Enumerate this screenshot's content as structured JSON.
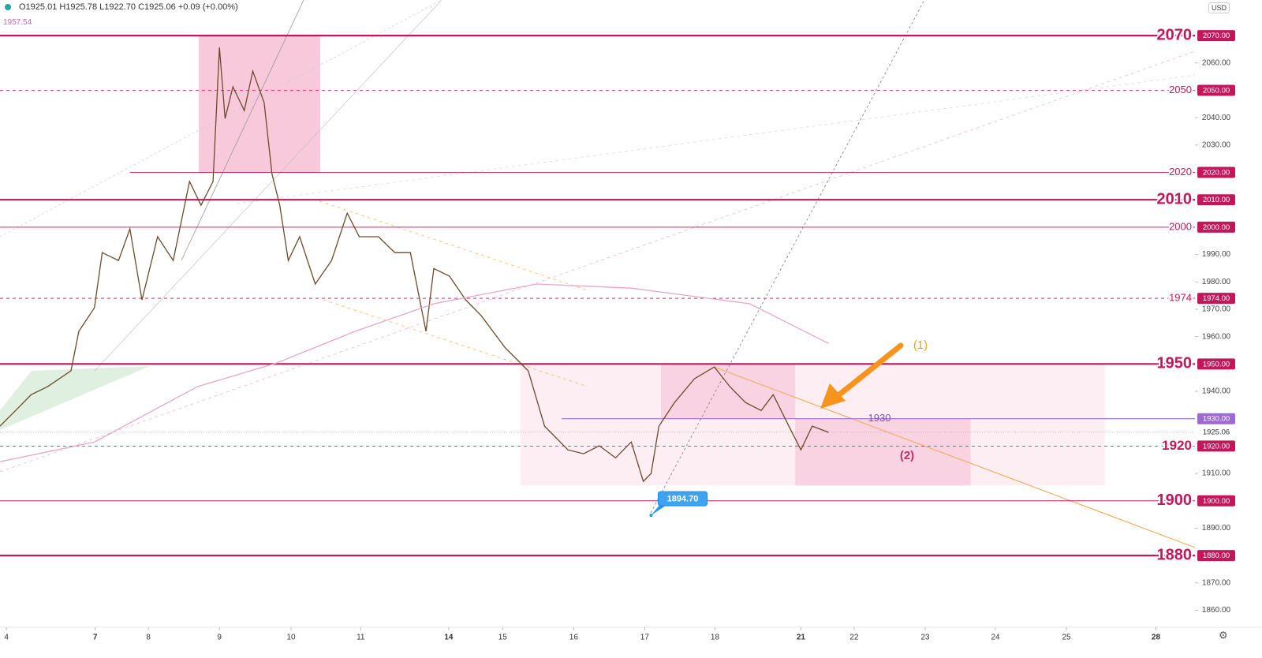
{
  "header": {
    "ohlc": "O1925.01 H1925.78 L1922.70 C1925.06 +0.09 (+0.00%)",
    "indicator_value": "1957.54",
    "currency": "USD"
  },
  "chart_data": {
    "type": "line",
    "xlim": [
      0,
      16.83
    ],
    "ylim": [
      1853.8,
      2083
    ],
    "xticks": [
      {
        "value": 0.09,
        "label": "4"
      },
      {
        "value": 1.34,
        "label": "7"
      },
      {
        "value": 2.09,
        "label": "8"
      },
      {
        "value": 3.09,
        "label": "9"
      },
      {
        "value": 4.1,
        "label": "10"
      },
      {
        "value": 5.08,
        "label": "11"
      },
      {
        "value": 6.32,
        "label": "14"
      },
      {
        "value": 7.08,
        "label": "15"
      },
      {
        "value": 8.08,
        "label": "16"
      },
      {
        "value": 9.08,
        "label": "17"
      },
      {
        "value": 10.07,
        "label": "18"
      },
      {
        "value": 11.28,
        "label": "21"
      },
      {
        "value": 12.03,
        "label": "22"
      },
      {
        "value": 13.03,
        "label": "23"
      },
      {
        "value": 14.02,
        "label": "24"
      },
      {
        "value": 15.02,
        "label": "25"
      },
      {
        "value": 16.28,
        "label": "28"
      }
    ],
    "yticks": [
      {
        "value": 2060,
        "label": "2060.00"
      },
      {
        "value": 2040,
        "label": "2040.00"
      },
      {
        "value": 2030,
        "label": "2030.00"
      },
      {
        "value": 1990,
        "label": "1990.00"
      },
      {
        "value": 1980,
        "label": "1980.00"
      },
      {
        "value": 1970,
        "label": "1970.00"
      },
      {
        "value": 1960,
        "label": "1960.00"
      },
      {
        "value": 1940,
        "label": "1940.00"
      },
      {
        "value": 1910,
        "label": "1910.00"
      },
      {
        "value": 1890,
        "label": "1890.00"
      },
      {
        "value": 1870,
        "label": "1870.00"
      },
      {
        "value": 1860,
        "label": "1860.00"
      }
    ],
    "current_price": {
      "value": 1925.06,
      "label": "1925.06"
    },
    "series": [
      {
        "color": "#6b4a2a",
        "x": [
          0,
          0.22,
          0.44,
          0.67,
          1.0,
          1.11,
          1.33,
          1.44,
          1.67,
          1.83,
          2.0,
          2.22,
          2.44,
          2.67,
          2.83,
          3.0,
          3.09,
          3.17,
          3.28,
          3.44,
          3.56,
          3.72,
          3.83,
          3.94,
          4.06,
          4.22,
          4.44,
          4.67,
          4.89,
          5.06,
          5.33,
          5.56,
          5.78,
          6.0,
          6.11,
          6.33,
          6.56,
          6.78,
          7.11,
          7.44,
          7.67,
          8.0,
          8.22,
          8.44,
          8.67,
          8.89,
          9.06,
          9.17,
          9.28,
          9.5,
          9.78,
          10.06,
          10.28,
          10.5,
          10.72,
          10.89,
          11.11,
          11.28,
          11.44,
          11.67
        ],
        "values": [
          1927.3,
          1933.0,
          1938.8,
          1941.7,
          1947.5,
          1961.9,
          1970.5,
          1990.7,
          1987.8,
          1999.4,
          1973.4,
          1996.5,
          1987.8,
          2016.7,
          2008.0,
          2016.7,
          2065.7,
          2039.7,
          2051.3,
          2042.6,
          2057.0,
          2045.5,
          2019.5,
          2008.0,
          1987.8,
          1996.5,
          1979.2,
          1987.8,
          2005.1,
          1996.5,
          1996.5,
          1990.7,
          1990.7,
          1961.9,
          1984.9,
          1982.1,
          1973.4,
          1967.6,
          1956.1,
          1947.5,
          1927.3,
          1918.6,
          1917.2,
          1920.1,
          1915.7,
          1921.5,
          1907.1,
          1910.0,
          1927.3,
          1935.9,
          1944.6,
          1948.9,
          1941.7,
          1935.9,
          1933.0,
          1938.8,
          1927.3,
          1918.6,
          1927.3,
          1925.0
        ]
      },
      {
        "color": "#e8a6c8",
        "x": [
          0,
          1.33,
          2.78,
          3.89,
          5.0,
          6.11,
          7.56,
          8.89,
          10.56,
          11.67
        ],
        "values": [
          1914.3,
          1921.5,
          1941.7,
          1950.3,
          1961.9,
          1972.0,
          1979.2,
          1977.7,
          1972.0,
          1957.5
        ]
      }
    ],
    "levels": [
      {
        "value": 2070,
        "price_label": "2070.00",
        "style": "thick",
        "label_size": "big"
      },
      {
        "value": 2050,
        "price_label": "2050.00",
        "style": "dashed",
        "label_size": "small"
      },
      {
        "value": 2020,
        "price_label": "2020.00",
        "style": "thin",
        "label_size": "small",
        "x_start": 1.83
      },
      {
        "value": 2010,
        "price_label": "2010.00",
        "style": "thick",
        "label_size": "big"
      },
      {
        "value": 2000,
        "price_label": "2000.00",
        "style": "thin",
        "label_size": "small"
      },
      {
        "value": 1974,
        "price_label": "1974.00",
        "style": "dashed",
        "label_size": "small"
      },
      {
        "value": 1950,
        "price_label": "1950.00",
        "style": "thick",
        "label_size": "big"
      },
      {
        "value": 1930,
        "price_label": "1930.00",
        "style": "purple",
        "label_size": "mid",
        "x_start": 7.91
      },
      {
        "value": 1920,
        "price_label": "1920.00",
        "style": "dashed",
        "label_size": "big"
      },
      {
        "value": 1900,
        "price_label": "1900.00",
        "style": "thin",
        "label_size": "big"
      },
      {
        "value": 1880,
        "price_label": "1880.00",
        "style": "thick",
        "label_size": "big"
      }
    ],
    "zones": [
      {
        "x": [
          7.33,
          15.56
        ],
        "y": [
          1905.6,
          1950
        ],
        "color": "#fdeef3"
      },
      {
        "x": [
          2.8,
          4.51
        ],
        "y": [
          2020,
          2070
        ],
        "color": "#f8c9da"
      },
      {
        "x": [
          9.31,
          11.2
        ],
        "y": [
          1930,
          1950
        ],
        "color": "#f9d3e1"
      },
      {
        "x": [
          11.2,
          13.67
        ],
        "y": [
          1905.6,
          1930
        ],
        "color": "#f9d3e1"
      }
    ],
    "callout": {
      "x": 9.17,
      "value": 1894.7,
      "label": "1894.70"
    },
    "annotations": [
      {
        "text": "(1)",
        "color": "#f0a020"
      },
      {
        "text": "(2)",
        "color": "#c0306a"
      }
    ]
  }
}
